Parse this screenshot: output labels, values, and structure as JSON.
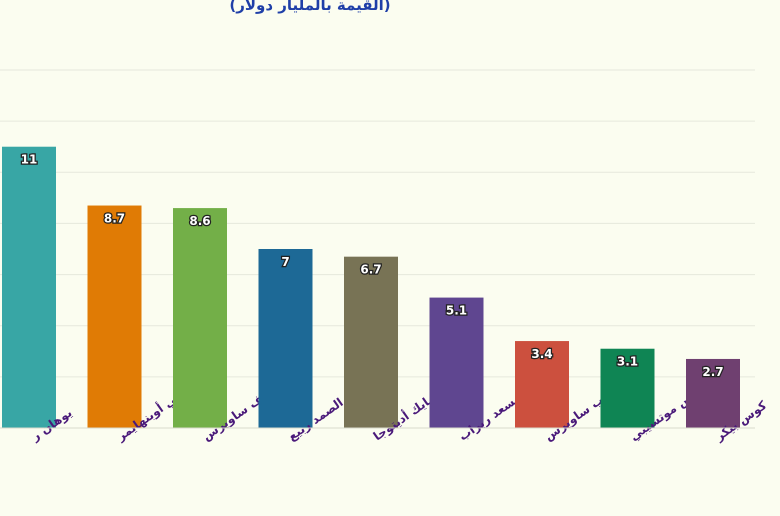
{
  "chart_data": {
    "type": "bar",
    "subtitle": "(القيمة بالمليار دولار)",
    "categories": [
      "يوهان ر",
      "نيكي أوبنهايمر",
      "ناصف ساويرس",
      "عبد الصمد ربيع",
      "مايك أديتوجا",
      "يسعد ربراب",
      "نجيب ساويرس",
      "باتريس موتسيبي",
      "كوس بيكر"
    ],
    "values": [
      11,
      8.7,
      8.6,
      7,
      6.7,
      5.1,
      3.4,
      3.1,
      2.7
    ],
    "value_labels": [
      "11",
      "8.7",
      "8.6",
      "7",
      "6.7",
      "5.1",
      "3.4",
      "3.1",
      "2.7"
    ],
    "colors": [
      "#38a6a5",
      "#e07b05",
      "#73af48",
      "#1d6996",
      "#787355",
      "#5f4690",
      "#cc503e",
      "#0f8554",
      "#6f4070"
    ],
    "ylim": [
      0,
      14
    ],
    "grid": true,
    "legend": "none"
  }
}
